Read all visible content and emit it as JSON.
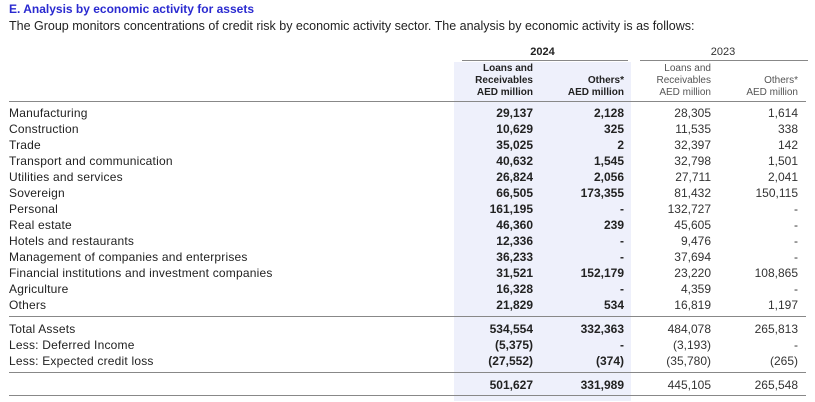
{
  "heading": "E. Analysis by economic activity for assets",
  "subheading": "The Group monitors concentrations of credit risk by economic activity sector. The analysis by economic activity is as follows:",
  "years": {
    "current": "2024",
    "prior": "2023"
  },
  "column_headers": {
    "c1": [
      "Loans and",
      "Receivables",
      "AED million"
    ],
    "c2": [
      "Others*",
      "AED million"
    ],
    "c3": [
      "Loans and",
      "Receivables",
      "AED million"
    ],
    "c4": [
      "Others*",
      "AED million"
    ]
  },
  "rows": [
    {
      "label": "Manufacturing",
      "v": [
        "29,137",
        "2,128",
        "28,305",
        "1,614"
      ]
    },
    {
      "label": "Construction",
      "v": [
        "10,629",
        "325",
        "11,535",
        "338"
      ]
    },
    {
      "label": "Trade",
      "v": [
        "35,025",
        "2",
        "32,397",
        "142"
      ]
    },
    {
      "label": "Transport and communication",
      "v": [
        "40,632",
        "1,545",
        "32,798",
        "1,501"
      ]
    },
    {
      "label": "Utilities and services",
      "v": [
        "26,824",
        "2,056",
        "27,711",
        "2,041"
      ]
    },
    {
      "label": "Sovereign",
      "v": [
        "66,505",
        "173,355",
        "81,432",
        "150,115"
      ]
    },
    {
      "label": "Personal",
      "v": [
        "161,195",
        "-",
        "132,727",
        "-"
      ]
    },
    {
      "label": "Real estate",
      "v": [
        "46,360",
        "239",
        "45,605",
        "-"
      ]
    },
    {
      "label": "Hotels and restaurants",
      "v": [
        "12,336",
        "-",
        "9,476",
        "-"
      ]
    },
    {
      "label": "Management of companies and enterprises",
      "v": [
        "36,233",
        "-",
        "37,694",
        "-"
      ]
    },
    {
      "label": "Financial institutions and investment companies",
      "v": [
        "31,521",
        "152,179",
        "23,220",
        "108,865"
      ]
    },
    {
      "label": "Agriculture",
      "v": [
        "16,328",
        "-",
        "4,359",
        "-"
      ]
    },
    {
      "label": "Others",
      "v": [
        "21,829",
        "534",
        "16,819",
        "1,197"
      ]
    }
  ],
  "totals": [
    {
      "label": "Total Assets",
      "v": [
        "534,554",
        "332,363",
        "484,078",
        "265,813"
      ]
    },
    {
      "label": "Less: Deferred Income",
      "v": [
        "(5,375)",
        "-",
        "(3,193)",
        "-"
      ]
    },
    {
      "label": "Less: Expected credit loss",
      "v": [
        "(27,552)",
        "(374)",
        "(35,780)",
        "(265)"
      ]
    }
  ],
  "net": {
    "label": "",
    "v": [
      "501,627",
      "331,989",
      "445,105",
      "265,548"
    ]
  }
}
